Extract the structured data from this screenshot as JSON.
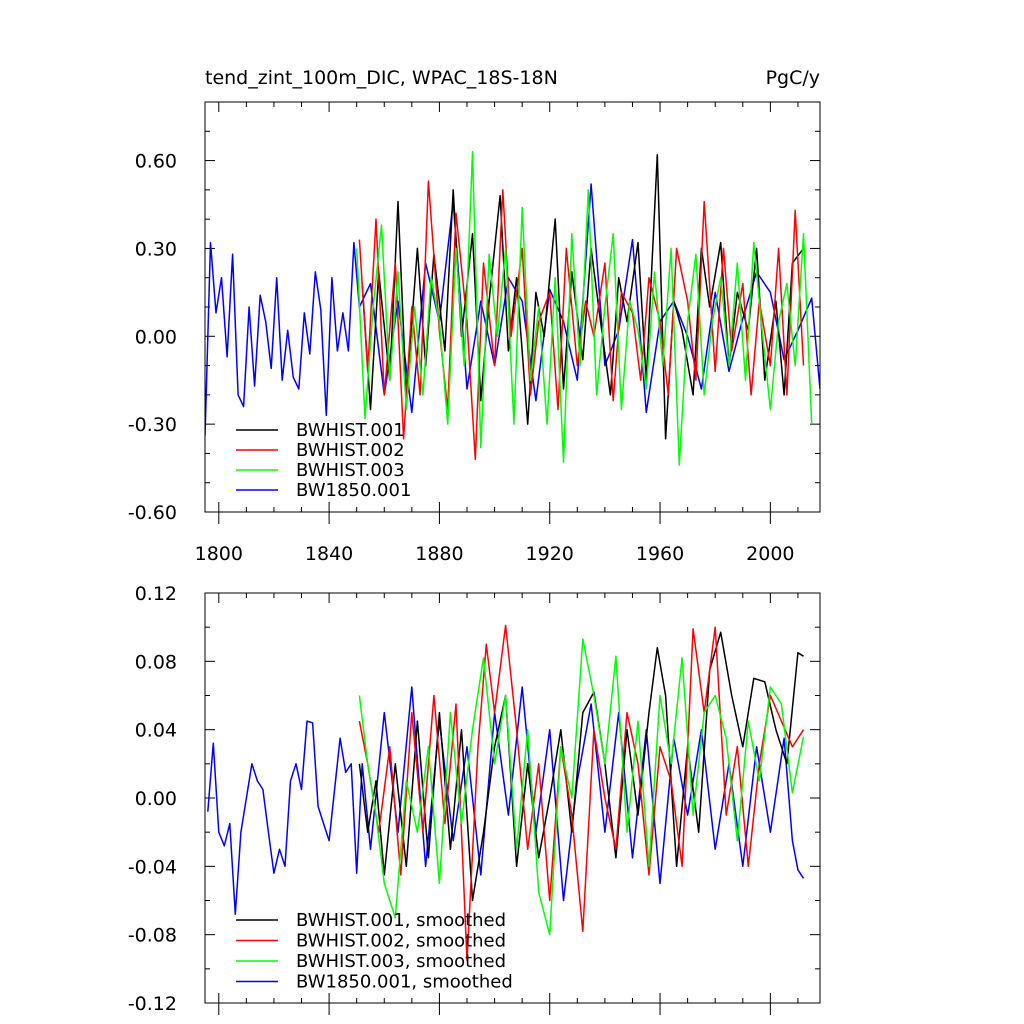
{
  "charts": [
    {
      "type": "line",
      "title": "tend_zint_100m_DIC, WPAC_18S-18N",
      "units": "PgC/y",
      "x_ticks": [
        1800,
        1840,
        1880,
        1920,
        1960,
        2000
      ],
      "y_tick_labels": [
        "-0.60",
        "-0.30",
        "0.00",
        "0.30",
        "0.60"
      ],
      "y_ticks": [
        -0.6,
        -0.3,
        0.0,
        0.3,
        0.6
      ],
      "xlim": [
        1795,
        2018
      ],
      "ylim": [
        -0.6,
        0.8
      ],
      "x_minor": 10,
      "y_minor": 0.1,
      "legend_placement": "bottom-left",
      "series": [
        {
          "name": "BWHIST.001",
          "color": "#000000"
        },
        {
          "name": "BWHIST.002",
          "color": "#ff0000"
        },
        {
          "name": "BWHIST.003",
          "color": "#00ff00"
        },
        {
          "name": "BW1850.001",
          "color": "#0000ff"
        }
      ]
    },
    {
      "type": "line",
      "title": "",
      "units": "",
      "x_ticks": [
        1800,
        1840,
        1880,
        1920,
        1960,
        2000
      ],
      "y_tick_labels": [
        "-0.12",
        "-0.08",
        "-0.04",
        "0.00",
        "0.04",
        "0.08",
        "0.12"
      ],
      "y_ticks": [
        -0.12,
        -0.08,
        -0.04,
        0.0,
        0.04,
        0.08,
        0.12
      ],
      "xlim": [
        1795,
        2018
      ],
      "ylim": [
        -0.12,
        0.12
      ],
      "x_minor": 10,
      "y_minor": 0.02,
      "legend_placement": "bottom-left",
      "series": [
        {
          "name": "BWHIST.001, smoothed",
          "color": "#000000"
        },
        {
          "name": "BWHIST.002, smoothed",
          "color": "#ff0000"
        },
        {
          "name": "BWHIST.003, smoothed",
          "color": "#00ff00"
        },
        {
          "name": "BW1850.001, smoothed",
          "color": "#0000ff"
        }
      ]
    }
  ],
  "chart_data": [
    {
      "type": "line",
      "title": "tend_zint_100m_DIC, WPAC_18S-18N",
      "units": "PgC/y",
      "xlim": [
        1795,
        2018
      ],
      "ylim": [
        -0.6,
        0.8
      ],
      "series": [
        {
          "name": "BW1850.001",
          "x": [
            1795,
            1797,
            1799,
            1801,
            1803,
            1805,
            1807,
            1809,
            1811,
            1813,
            1815,
            1817,
            1819,
            1821,
            1823,
            1825,
            1827,
            1829,
            1831,
            1833,
            1835,
            1837,
            1839,
            1841,
            1843,
            1845,
            1847,
            1849,
            1851,
            1855,
            1860,
            1865,
            1870,
            1875,
            1880,
            1885,
            1890,
            1895,
            1900,
            1905,
            1910,
            1915,
            1920,
            1925,
            1930,
            1935,
            1940,
            1945,
            1950,
            1955,
            1960,
            1965,
            1970,
            1975,
            1980,
            1985,
            1990,
            1995,
            2000,
            2005,
            2010,
            2015,
            2018
          ],
          "y": [
            -0.34,
            0.32,
            0.08,
            0.2,
            -0.07,
            0.28,
            -0.2,
            -0.24,
            0.1,
            -0.17,
            0.14,
            0.05,
            -0.11,
            0.2,
            -0.15,
            0.02,
            -0.14,
            -0.18,
            0.08,
            -0.06,
            0.22,
            0.09,
            -0.27,
            0.2,
            -0.05,
            0.08,
            -0.05,
            0.32,
            0.1,
            0.18,
            -0.2,
            0.12,
            -0.26,
            0.25,
            0.05,
            0.46,
            -0.18,
            0.12,
            -0.1,
            0.2,
            0.12,
            -0.22,
            0.16,
            0.05,
            -0.15,
            0.52,
            -0.1,
            0.02,
            0.33,
            -0.26,
            0.05,
            0.12,
            0.0,
            -0.18,
            0.15,
            -0.12,
            0.06,
            0.22,
            0.15,
            -0.08,
            0.02,
            0.13,
            -0.18
          ]
        },
        {
          "name": "BWHIST.001",
          "x": [
            1852,
            1855,
            1858,
            1862,
            1865,
            1868,
            1872,
            1875,
            1878,
            1882,
            1885,
            1888,
            1892,
            1895,
            1898,
            1902,
            1905,
            1908,
            1912,
            1915,
            1918,
            1922,
            1925,
            1928,
            1932,
            1935,
            1938,
            1942,
            1945,
            1948,
            1952,
            1955,
            1959,
            1962,
            1965,
            1968,
            1972,
            1975,
            1978,
            1982,
            1985,
            1988,
            1992,
            1995,
            1998,
            2002,
            2005,
            2008,
            2012
          ],
          "y": [
            0.18,
            -0.25,
            0.22,
            -0.15,
            0.46,
            -0.2,
            0.3,
            -0.1,
            0.28,
            -0.05,
            0.5,
            0.0,
            0.35,
            -0.22,
            0.12,
            0.48,
            -0.05,
            0.2,
            -0.3,
            0.15,
            0.0,
            0.4,
            -0.18,
            0.22,
            -0.08,
            0.3,
            0.08,
            -0.2,
            0.2,
            0.05,
            0.32,
            -0.15,
            0.62,
            -0.35,
            0.12,
            0.02,
            -0.2,
            0.3,
            0.1,
            0.32,
            -0.1,
            0.15,
            0.02,
            0.3,
            -0.15,
            0.12,
            -0.2,
            0.25,
            0.3
          ]
        },
        {
          "name": "BWHIST.002",
          "x": [
            1851,
            1854,
            1857,
            1860,
            1864,
            1867,
            1870,
            1873,
            1876,
            1880,
            1883,
            1886,
            1890,
            1893,
            1896,
            1900,
            1903,
            1906,
            1910,
            1913,
            1916,
            1920,
            1923,
            1926,
            1930,
            1933,
            1936,
            1940,
            1943,
            1946,
            1950,
            1953,
            1956,
            1960,
            1963,
            1966,
            1970,
            1973,
            1976,
            1980,
            1983,
            1986,
            1990,
            1993,
            1996,
            2000,
            2003,
            2006,
            2009,
            2012
          ],
          "y": [
            0.33,
            -0.12,
            0.4,
            -0.2,
            0.25,
            -0.35,
            0.1,
            -0.2,
            0.53,
            0.02,
            -0.25,
            0.42,
            0.05,
            -0.42,
            0.25,
            -0.1,
            0.5,
            0.0,
            0.3,
            -0.2,
            0.05,
            0.15,
            -0.25,
            0.3,
            -0.1,
            0.12,
            0.0,
            0.25,
            -0.22,
            0.15,
            0.08,
            -0.15,
            0.2,
            0.05,
            -0.2,
            0.3,
            0.12,
            -0.15,
            0.46,
            -0.12,
            0.3,
            -0.05,
            0.18,
            -0.2,
            0.12,
            -0.1,
            0.3,
            -0.2,
            0.43,
            -0.1
          ]
        },
        {
          "name": "BWHIST.003",
          "x": [
            1850,
            1853,
            1856,
            1859,
            1862,
            1865,
            1868,
            1871,
            1874,
            1877,
            1880,
            1883,
            1886,
            1889,
            1892,
            1895,
            1898,
            1901,
            1904,
            1907,
            1910,
            1913,
            1916,
            1919,
            1922,
            1925,
            1928,
            1931,
            1934,
            1937,
            1940,
            1943,
            1946,
            1949,
            1952,
            1955,
            1958,
            1961,
            1964,
            1967,
            1970,
            1973,
            1976,
            1979,
            1982,
            1985,
            1988,
            1991,
            1994,
            1997,
            2000,
            2003,
            2006,
            2009,
            2012,
            2015
          ],
          "y": [
            0.3,
            -0.28,
            0.1,
            0.38,
            -0.15,
            0.22,
            -0.25,
            0.1,
            -0.2,
            0.2,
            0.05,
            -0.3,
            0.3,
            -0.1,
            0.63,
            -0.38,
            0.28,
            0.0,
            0.3,
            -0.3,
            0.44,
            -0.15,
            0.1,
            -0.3,
            0.2,
            -0.43,
            0.35,
            -0.1,
            0.5,
            -0.2,
            0.1,
            0.35,
            -0.25,
            0.12,
            0.02,
            -0.18,
            0.22,
            -0.1,
            0.3,
            -0.44,
            0.05,
            0.28,
            -0.2,
            0.05,
            0.2,
            -0.1,
            0.25,
            -0.15,
            0.32,
            0.02,
            -0.25,
            0.05,
            0.18,
            -0.1,
            0.35,
            -0.3
          ]
        }
      ]
    },
    {
      "type": "line",
      "title": "",
      "units": "",
      "xlim": [
        1795,
        2018
      ],
      "ylim": [
        -0.12,
        0.12
      ],
      "series": [
        {
          "name": "BW1850.001, smoothed",
          "x": [
            1796,
            1798,
            1800,
            1802,
            1804,
            1806,
            1808,
            1810,
            1812,
            1814,
            1816,
            1818,
            1820,
            1822,
            1824,
            1826,
            1828,
            1830,
            1832,
            1834,
            1836,
            1838,
            1840,
            1842,
            1844,
            1846,
            1848,
            1850,
            1852,
            1855,
            1860,
            1865,
            1870,
            1875,
            1880,
            1885,
            1890,
            1895,
            1900,
            1905,
            1910,
            1915,
            1920,
            1925,
            1930,
            1935,
            1940,
            1945,
            1950,
            1955,
            1960,
            1965,
            1970,
            1975,
            1980,
            1985,
            1990,
            1995,
            2000,
            2005,
            2008,
            2010,
            2012
          ],
          "y": [
            -0.008,
            0.032,
            -0.02,
            -0.028,
            -0.015,
            -0.068,
            -0.02,
            0.0,
            0.02,
            0.01,
            0.005,
            -0.02,
            -0.044,
            -0.03,
            -0.04,
            0.01,
            0.02,
            0.005,
            0.045,
            0.044,
            -0.005,
            -0.015,
            -0.025,
            0.005,
            0.035,
            0.015,
            0.02,
            -0.044,
            0.02,
            -0.03,
            0.05,
            -0.02,
            0.065,
            -0.04,
            0.045,
            -0.025,
            0.03,
            -0.045,
            0.05,
            -0.01,
            0.065,
            -0.02,
            0.04,
            -0.06,
            0.01,
            0.055,
            -0.02,
            0.05,
            -0.035,
            0.04,
            -0.05,
            0.035,
            -0.01,
            0.04,
            -0.03,
            0.02,
            -0.04,
            0.03,
            -0.02,
            0.035,
            -0.025,
            -0.042,
            -0.047
          ]
        },
        {
          "name": "BWHIST.001, smoothed",
          "x": [
            1851,
            1854,
            1857,
            1860,
            1864,
            1868,
            1872,
            1876,
            1880,
            1884,
            1888,
            1892,
            1896,
            1900,
            1904,
            1908,
            1912,
            1916,
            1920,
            1924,
            1928,
            1932,
            1936,
            1940,
            1944,
            1948,
            1952,
            1956,
            1959,
            1962,
            1966,
            1970,
            1974,
            1978,
            1982,
            1986,
            1990,
            1994,
            1998,
            2002,
            2006,
            2010,
            2012
          ],
          "y": [
            0.02,
            -0.02,
            0.01,
            -0.045,
            0.02,
            -0.04,
            0.045,
            -0.035,
            0.05,
            -0.03,
            0.04,
            -0.06,
            -0.02,
            0.03,
            0.06,
            -0.04,
            0.02,
            -0.035,
            0.0,
            0.04,
            -0.02,
            0.05,
            0.062,
            0.02,
            -0.035,
            0.04,
            -0.01,
            0.05,
            0.088,
            0.06,
            -0.04,
            0.03,
            -0.02,
            0.075,
            0.097,
            0.06,
            0.03,
            0.07,
            0.068,
            0.04,
            0.02,
            0.085,
            0.083
          ]
        },
        {
          "name": "BWHIST.002, smoothed",
          "x": [
            1851,
            1854,
            1858,
            1862,
            1866,
            1870,
            1874,
            1878,
            1882,
            1886,
            1890,
            1894,
            1897,
            1900,
            1904,
            1908,
            1912,
            1916,
            1920,
            1924,
            1928,
            1932,
            1936,
            1940,
            1944,
            1948,
            1952,
            1956,
            1960,
            1964,
            1968,
            1972,
            1976,
            1980,
            1984,
            1988,
            1992,
            1996,
            2000,
            2004,
            2008,
            2012
          ],
          "y": [
            0.045,
            0.02,
            -0.02,
            0.03,
            -0.045,
            0.05,
            -0.02,
            0.06,
            -0.015,
            0.055,
            -0.095,
            0.03,
            0.09,
            0.05,
            0.101,
            0.04,
            -0.03,
            0.02,
            -0.06,
            0.03,
            -0.01,
            -0.078,
            0.04,
            0.0,
            -0.03,
            0.05,
            0.02,
            -0.045,
            0.03,
            0.01,
            -0.04,
            0.099,
            0.05,
            0.1,
            -0.01,
            0.03,
            -0.04,
            0.02,
            0.06,
            0.045,
            0.03,
            0.04
          ]
        },
        {
          "name": "BWHIST.003, smoothed",
          "x": [
            1851,
            1854,
            1857,
            1860,
            1864,
            1868,
            1872,
            1876,
            1880,
            1884,
            1888,
            1892,
            1896,
            1900,
            1904,
            1908,
            1912,
            1916,
            1920,
            1924,
            1928,
            1932,
            1936,
            1940,
            1944,
            1948,
            1952,
            1956,
            1960,
            1964,
            1968,
            1972,
            1976,
            1980,
            1984,
            1988,
            1992,
            1996,
            2000,
            2004,
            2008,
            2012
          ],
          "y": [
            0.06,
            0.02,
            -0.01,
            -0.05,
            -0.07,
            0.01,
            -0.02,
            0.03,
            -0.05,
            0.05,
            -0.015,
            0.04,
            0.082,
            0.02,
            0.06,
            -0.03,
            0.04,
            -0.055,
            -0.08,
            0.03,
            0.0,
            0.093,
            0.06,
            0.02,
            0.083,
            -0.02,
            0.045,
            -0.04,
            0.06,
            0.02,
            0.082,
            -0.01,
            0.05,
            0.06,
            0.035,
            -0.025,
            0.045,
            0.01,
            0.065,
            0.055,
            0.003,
            0.036
          ]
        }
      ]
    }
  ]
}
